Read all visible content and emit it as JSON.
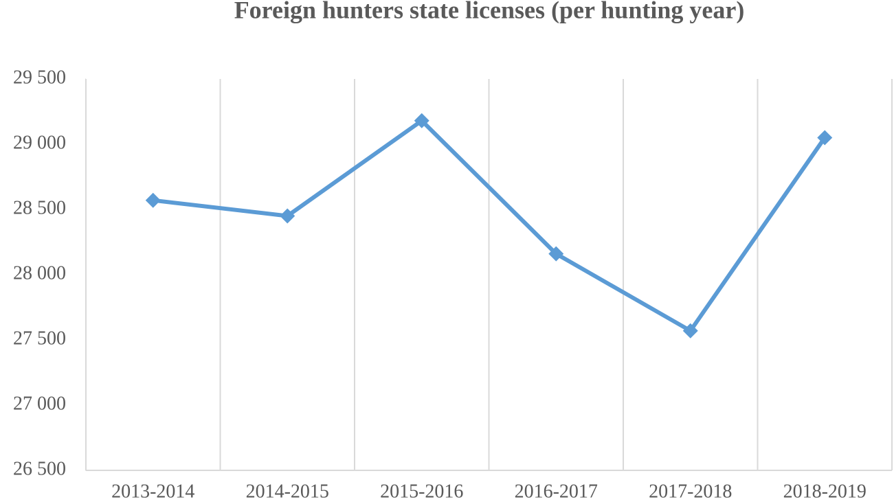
{
  "chart_data": {
    "type": "line",
    "title": "Foreign hunters state licenses (per hunting year)",
    "categories": [
      "2013-2014",
      "2014-2015",
      "2015-2016",
      "2016-2017",
      "2017-2018",
      "2018-2019"
    ],
    "series": [
      {
        "name": "Foreign hunters state licenses",
        "color": "#5b9bd5",
        "values": [
          28570,
          28450,
          29180,
          28160,
          27570,
          29050
        ]
      }
    ],
    "ylim": [
      26500,
      29500
    ],
    "yticks": [
      {
        "value": 26500,
        "label": "26 500"
      },
      {
        "value": 27000,
        "label": "27 000"
      },
      {
        "value": 27500,
        "label": "27 500"
      },
      {
        "value": 28000,
        "label": "28 000"
      },
      {
        "value": 28500,
        "label": "28 500"
      },
      {
        "value": 29000,
        "label": "29 000"
      },
      {
        "value": 29500,
        "label": "29 500"
      }
    ],
    "grid": "x",
    "legend": false
  }
}
